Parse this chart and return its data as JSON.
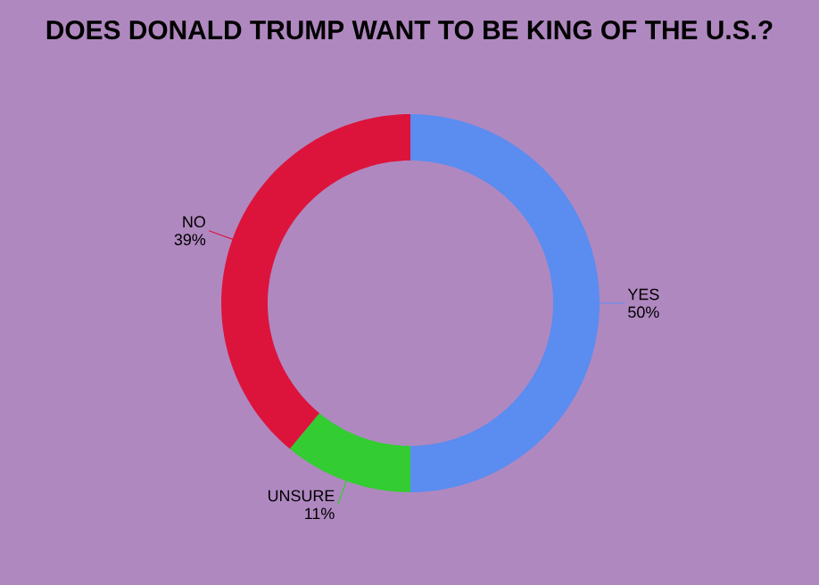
{
  "chart_data": {
    "type": "donut",
    "title": "DOES DONALD TRUMP WANT TO BE KING OF THE U.S.?",
    "categories": [
      "YES",
      "UNSURE",
      "NO"
    ],
    "values": [
      50,
      11,
      39
    ],
    "value_labels": [
      "50%",
      "11%",
      "39%"
    ],
    "colors": [
      "#5b8cf0",
      "#33cc33",
      "#dc143c"
    ]
  }
}
